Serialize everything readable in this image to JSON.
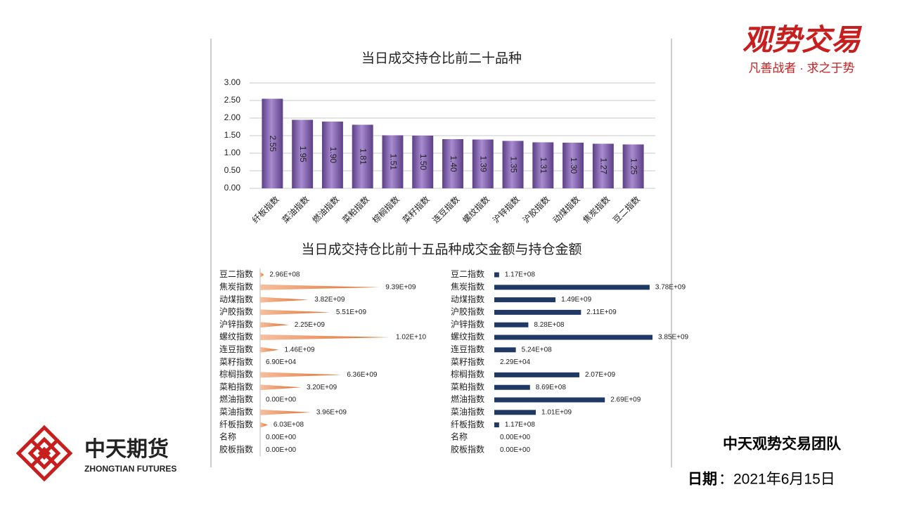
{
  "page": {
    "brand": "观势交易",
    "slogan": "凡善战者 · 求之于势",
    "company": "中天期货",
    "company_en": "ZHONGTIAN FUTURES",
    "team": "中天观势交易团队",
    "date_label": "日期",
    "date": "：2021年6月15日"
  },
  "chart_data": [
    {
      "type": "bar",
      "orientation": "vertical",
      "title": "当日成交持仓比前二十品种",
      "color": "#7d5aa6",
      "categories": [
        "纤板指数",
        "菜油指数",
        "燃油指数",
        "菜粕指数",
        "棕榈指数",
        "菜籽指数",
        "连豆指数",
        "螺纹指数",
        "沪锌指数",
        "沪胶指数",
        "动煤指数",
        "焦炭指数",
        "豆二指数"
      ],
      "values": [
        2.55,
        1.95,
        1.9,
        1.81,
        1.51,
        1.5,
        1.4,
        1.39,
        1.35,
        1.31,
        1.3,
        1.27,
        1.25
      ],
      "value_labels": [
        "2.55",
        "1.95",
        "1.90",
        "1.81",
        "1.51",
        "1.50",
        "1.40",
        "1.39",
        "1.35",
        "1.31",
        "1.30",
        "1.27",
        "1.25"
      ],
      "ylim": [
        0,
        3
      ],
      "yticks": [
        {
          "value": 0,
          "label": "0.00"
        },
        {
          "value": 0.5,
          "label": "0.50"
        },
        {
          "value": 1,
          "label": "1.00"
        },
        {
          "value": 1.5,
          "label": "1.50"
        },
        {
          "value": 2,
          "label": "2.00"
        },
        {
          "value": 2.5,
          "label": "2.50"
        },
        {
          "value": 3,
          "label": "3.00"
        }
      ],
      "grid": true
    },
    {
      "type": "bar",
      "orientation": "horizontal",
      "title": "当日成交持仓比前十五品种成交金额与持仓金额",
      "color": "#e8804a",
      "categories": [
        "豆二指数",
        "焦炭指数",
        "动煤指数",
        "沪胶指数",
        "沪锌指数",
        "螺纹指数",
        "连豆指数",
        "菜籽指数",
        "棕榈指数",
        "菜粕指数",
        "燃油指数",
        "菜油指数",
        "纤板指数",
        "名称",
        "胶板指数"
      ],
      "values": [
        296000000,
        9390000000,
        3820000000,
        5510000000,
        2250000000,
        10200000000,
        1460000000,
        69000,
        6360000000,
        3200000000,
        0,
        3960000000,
        603000000,
        0,
        0
      ],
      "value_labels": [
        "2.96E+08",
        "9.39E+09",
        "3.82E+09",
        "5.51E+09",
        "2.25E+09",
        "1.02E+10",
        "1.46E+09",
        "6.90E+04",
        "6.36E+09",
        "3.20E+09",
        "0.00E+00",
        "3.96E+09",
        "6.03E+08",
        "0.00E+00",
        "0.00E+00"
      ]
    },
    {
      "type": "bar",
      "orientation": "horizontal",
      "color": "#1f3864",
      "categories": [
        "豆二指数",
        "焦炭指数",
        "动煤指数",
        "沪胶指数",
        "沪锌指数",
        "螺纹指数",
        "连豆指数",
        "菜籽指数",
        "棕榈指数",
        "菜粕指数",
        "燃油指数",
        "菜油指数",
        "纤板指数",
        "名称",
        "胶板指数"
      ],
      "values": [
        117000000,
        3780000000,
        1490000000,
        2110000000,
        828000000,
        3850000000,
        524000000,
        22900,
        2070000000,
        869000000,
        2690000000,
        1010000000,
        117000000,
        0,
        0
      ],
      "value_labels": [
        "1.17E+08",
        "3.78E+09",
        "1.49E+09",
        "2.11E+09",
        "8.28E+08",
        "3.85E+09",
        "5.24E+08",
        "2.29E+04",
        "2.07E+09",
        "8.69E+08",
        "2.69E+09",
        "1.01E+09",
        "1.17E+08",
        "0.00E+00",
        "0.00E+00"
      ]
    }
  ]
}
